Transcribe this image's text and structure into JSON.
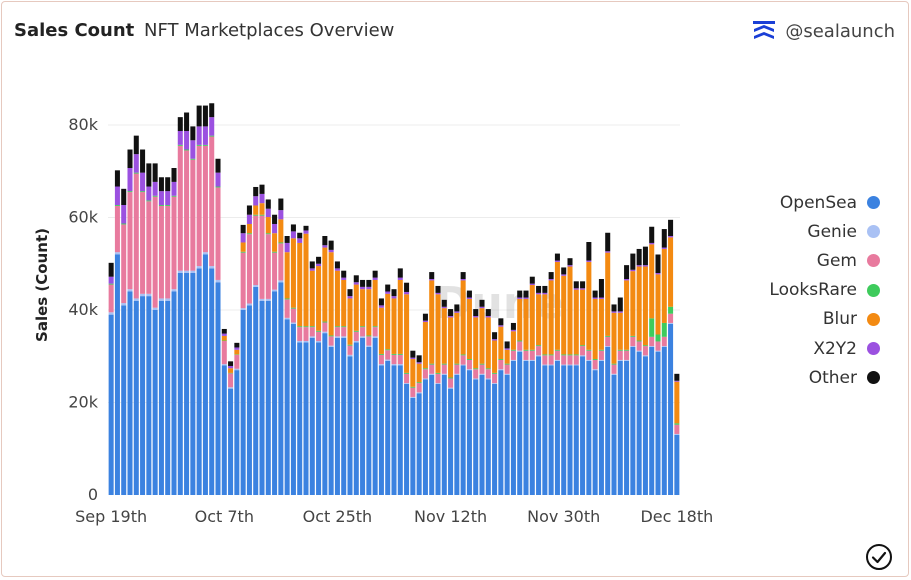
{
  "header": {
    "title": "Sales Count",
    "subtitle": "NFT Marketplaces Overview",
    "brand": "@sealaunch",
    "brand_logo_icon": "sealaunch-logo-icon",
    "status_icon": "check-circle-icon"
  },
  "watermark": "Dune",
  "chart_data": {
    "type": "bar",
    "stacked": true,
    "ylabel": "Sales (Count)",
    "xlabel": "",
    "ylim": [
      0,
      90000
    ],
    "yticks": [
      0,
      20000,
      40000,
      60000,
      80000
    ],
    "ytick_labels": [
      "0",
      "20k",
      "40k",
      "60k",
      "80k"
    ],
    "xtick_labels": [
      "Sep 19th",
      "Oct 7th",
      "Oct 25th",
      "Nov 12th",
      "Nov 30th",
      "Dec 18th"
    ],
    "xtick_days": [
      0,
      18,
      36,
      54,
      72,
      90
    ],
    "x_start": "Sep 19th",
    "x_end": "Dec 19th",
    "legend_position": "right",
    "grid": true,
    "series": [
      {
        "name": "OpenSea",
        "color": "#3b82e0",
        "values": [
          39000,
          52000,
          41000,
          44000,
          42000,
          43000,
          43000,
          40000,
          42000,
          42000,
          44000,
          48000,
          48000,
          48000,
          49000,
          52000,
          49000,
          46000,
          28000,
          23000,
          27000,
          40000,
          41000,
          45000,
          42000,
          42000,
          44000,
          46000,
          38000,
          37000,
          33000,
          33000,
          34000,
          33000,
          35000,
          32000,
          34000,
          34000,
          30000,
          33000,
          34000,
          32000,
          34000,
          28000,
          29000,
          28000,
          28000,
          24000,
          21000,
          22000,
          25000,
          26000,
          24000,
          26000,
          23000,
          26000,
          28000,
          27000,
          25000,
          26000,
          25000,
          24000,
          27000,
          26000,
          29000,
          31000,
          29000,
          29000,
          30000,
          28000,
          28000,
          29000,
          28000,
          28000,
          28000,
          30000,
          29000,
          27000,
          29000,
          32000,
          26000,
          29000,
          29000,
          32000,
          31000,
          30000,
          32000,
          31000,
          32000,
          37000,
          13000
        ]
      },
      {
        "name": "Genie",
        "color": "#a9c1f4",
        "values": [
          500,
          500,
          500,
          500,
          500,
          500,
          500,
          500,
          500,
          500,
          500,
          500,
          500,
          500,
          500,
          500,
          500,
          500,
          300,
          300,
          300,
          400,
          400,
          400,
          400,
          400,
          400,
          400,
          300,
          300,
          300,
          300,
          300,
          300,
          300,
          300,
          300,
          300,
          300,
          300,
          300,
          300,
          300,
          300,
          300,
          300,
          300,
          200,
          200,
          200,
          200,
          200,
          200,
          200,
          200,
          200,
          200,
          200,
          200,
          200,
          200,
          200,
          200,
          200,
          200,
          200,
          200,
          200,
          200,
          200,
          200,
          200,
          200,
          200,
          200,
          200,
          200,
          200,
          200,
          200,
          200,
          200,
          200,
          200,
          200,
          200,
          200,
          200,
          200,
          200,
          200
        ]
      },
      {
        "name": "Gem",
        "color": "#e87a9e",
        "values": [
          6000,
          10000,
          17000,
          21000,
          27000,
          22000,
          20000,
          24000,
          20000,
          20000,
          20000,
          27000,
          26000,
          24000,
          26000,
          23000,
          28000,
          20000,
          5000,
          3000,
          3000,
          12000,
          15000,
          15000,
          18000,
          14000,
          8000,
          8000,
          4000,
          3000,
          3000,
          3000,
          2000,
          2000,
          2000,
          2000,
          2000,
          2000,
          2000,
          2000,
          2000,
          2000,
          2000,
          2000,
          2000,
          2000,
          2000,
          2000,
          2000,
          2000,
          2000,
          2000,
          2000,
          2000,
          2000,
          2000,
          2000,
          2000,
          2000,
          2000,
          2000,
          2000,
          2000,
          2000,
          2000,
          2000,
          2000,
          2000,
          2000,
          2000,
          2000,
          2000,
          2000,
          2000,
          2000,
          2000,
          2000,
          2000,
          2000,
          2000,
          2000,
          2000,
          2000,
          2000,
          2000,
          2000,
          2000,
          2000,
          2000,
          2000,
          2000
        ]
      },
      {
        "name": "LooksRare",
        "color": "#3ecb5c",
        "values": [
          200,
          200,
          200,
          200,
          200,
          200,
          200,
          200,
          200,
          200,
          200,
          200,
          200,
          200,
          200,
          200,
          200,
          200,
          100,
          100,
          100,
          200,
          200,
          200,
          200,
          200,
          200,
          200,
          200,
          200,
          200,
          200,
          200,
          200,
          200,
          200,
          200,
          200,
          200,
          200,
          200,
          200,
          200,
          200,
          200,
          200,
          200,
          200,
          200,
          200,
          200,
          200,
          200,
          200,
          200,
          200,
          200,
          200,
          200,
          200,
          200,
          200,
          200,
          200,
          200,
          200,
          200,
          200,
          200,
          200,
          200,
          200,
          200,
          200,
          200,
          200,
          200,
          200,
          200,
          200,
          200,
          200,
          200,
          200,
          200,
          200,
          4000,
          1500,
          3000,
          1500,
          300
        ]
      },
      {
        "name": "Blur",
        "color": "#f38a12",
        "values": [
          0,
          0,
          0,
          0,
          0,
          0,
          0,
          0,
          0,
          0,
          0,
          0,
          0,
          0,
          0,
          0,
          0,
          0,
          1000,
          1000,
          1000,
          2000,
          2000,
          2000,
          2500,
          3500,
          4000,
          5000,
          10000,
          15000,
          18000,
          20000,
          12000,
          14000,
          16000,
          18000,
          12000,
          10000,
          10000,
          10000,
          8000,
          10000,
          10000,
          10000,
          12000,
          12000,
          16000,
          17000,
          6000,
          4000,
          10000,
          18000,
          17000,
          12000,
          13000,
          11000,
          16000,
          13000,
          11000,
          12000,
          11000,
          7000,
          7000,
          3000,
          4000,
          9000,
          11000,
          14000,
          11000,
          13000,
          16000,
          19000,
          17000,
          19000,
          14000,
          12000,
          19000,
          13000,
          11000,
          18000,
          11000,
          8000,
          15000,
          14000,
          16000,
          17000,
          16000,
          13000,
          16000,
          15000,
          9000
        ]
      },
      {
        "name": "X2Y2",
        "color": "#9b51e0",
        "values": [
          1500,
          4000,
          4000,
          5000,
          4000,
          4000,
          3000,
          3000,
          3000,
          3000,
          3000,
          3000,
          4000,
          4000,
          4000,
          4000,
          4000,
          3000,
          500,
          500,
          500,
          2000,
          2000,
          2000,
          2000,
          1800,
          2000,
          2000,
          2000,
          1500,
          1000,
          700,
          500,
          500,
          500,
          500,
          500,
          500,
          500,
          500,
          500,
          500,
          500,
          500,
          500,
          500,
          500,
          500,
          300,
          300,
          300,
          300,
          300,
          300,
          300,
          300,
          300,
          300,
          300,
          300,
          300,
          300,
          300,
          300,
          300,
          300,
          300,
          300,
          300,
          300,
          300,
          300,
          300,
          300,
          300,
          300,
          300,
          300,
          300,
          300,
          300,
          300,
          300,
          300,
          300,
          300,
          300,
          300,
          300,
          300,
          200
        ]
      },
      {
        "name": "Other",
        "color": "#111111",
        "values": [
          3000,
          3500,
          3500,
          4000,
          4000,
          5000,
          5000,
          4000,
          3000,
          3000,
          3000,
          3000,
          4000,
          3000,
          4500,
          4500,
          3000,
          3000,
          1000,
          1000,
          1000,
          1800,
          2000,
          2000,
          2000,
          2000,
          2000,
          2500,
          1500,
          1500,
          1200,
          1000,
          1500,
          1500,
          2000,
          2000,
          1500,
          1500,
          1500,
          1500,
          1500,
          1500,
          1500,
          1500,
          1500,
          1500,
          2000,
          2000,
          1500,
          1500,
          1500,
          1500,
          1500,
          1500,
          1500,
          1500,
          1500,
          1500,
          1500,
          1500,
          1500,
          1500,
          1500,
          1500,
          1500,
          1500,
          1500,
          1500,
          1500,
          1500,
          1500,
          1500,
          1500,
          1500,
          1500,
          1500,
          4000,
          1500,
          4000,
          4000,
          1500,
          3000,
          3000,
          3500,
          3500,
          4000,
          3500,
          4000,
          4000,
          3500,
          1500
        ]
      }
    ]
  }
}
